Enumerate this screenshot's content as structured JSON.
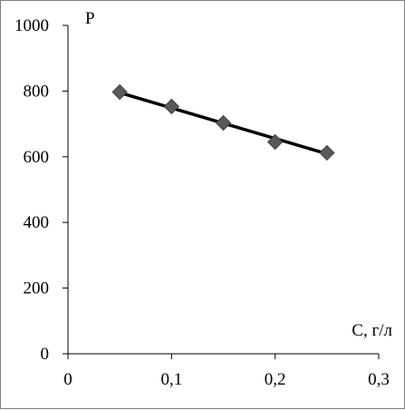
{
  "chart_data": {
    "type": "scatter",
    "title": "",
    "xlabel": "C, г/л",
    "ylabel": "P",
    "xlim": [
      0,
      0.3
    ],
    "ylim": [
      0,
      1000
    ],
    "x_ticks": [
      0,
      0.1,
      0.2,
      0.3
    ],
    "x_tick_labels": [
      "0",
      "0,1",
      "0,2",
      "0,3"
    ],
    "y_ticks": [
      0,
      200,
      400,
      600,
      800,
      1000
    ],
    "y_tick_labels": [
      "0",
      "200",
      "400",
      "600",
      "800",
      "1000"
    ],
    "grid": false,
    "legend": "none",
    "series": [
      {
        "marker": "diamond",
        "color": "#595959",
        "x": [
          0.05,
          0.1,
          0.15,
          0.2,
          0.25
        ],
        "y": [
          797,
          753,
          703,
          645,
          612
        ]
      }
    ],
    "trendline": {
      "type": "linear",
      "color": "#000000",
      "x": [
        0.05,
        0.25
      ],
      "y": [
        795,
        609
      ]
    }
  }
}
